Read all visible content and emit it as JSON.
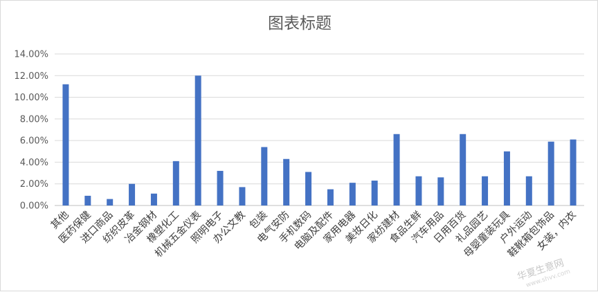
{
  "chart_data": {
    "type": "bar",
    "title": "图表标题",
    "xlabel": "",
    "ylabel": "",
    "ylim": [
      0,
      14
    ],
    "yticks": [
      "0.00%",
      "2.00%",
      "4.00%",
      "6.00%",
      "8.00%",
      "10.00%",
      "12.00%",
      "14.00%"
    ],
    "grid": true,
    "legend": "none",
    "bar_color": "#4472c4",
    "categories": [
      "其他",
      "医药保健",
      "进口商品",
      "纺织皮革",
      "冶金钢材",
      "橡塑化工",
      "机械五金仪表",
      "照明电子",
      "办公文教",
      "包装",
      "电气安防",
      "手机数码",
      "电脑及配件",
      "家用电器",
      "美妆日化",
      "家纺建材",
      "食品生鲜",
      "汽车用品",
      "日用百货",
      "礼品园艺",
      "母婴童装玩具",
      "户外运动",
      "鞋靴箱包饰品",
      "女装，内衣"
    ],
    "values": [
      11.2,
      0.9,
      0.6,
      2.0,
      1.1,
      4.1,
      12.0,
      3.2,
      1.7,
      5.4,
      4.3,
      3.1,
      1.5,
      2.1,
      2.3,
      6.6,
      2.7,
      2.6,
      6.6,
      2.7,
      5.0,
      2.7,
      5.9,
      6.1
    ]
  },
  "watermark": {
    "text": "华夏生意网",
    "sub": "www.shvv.com"
  }
}
